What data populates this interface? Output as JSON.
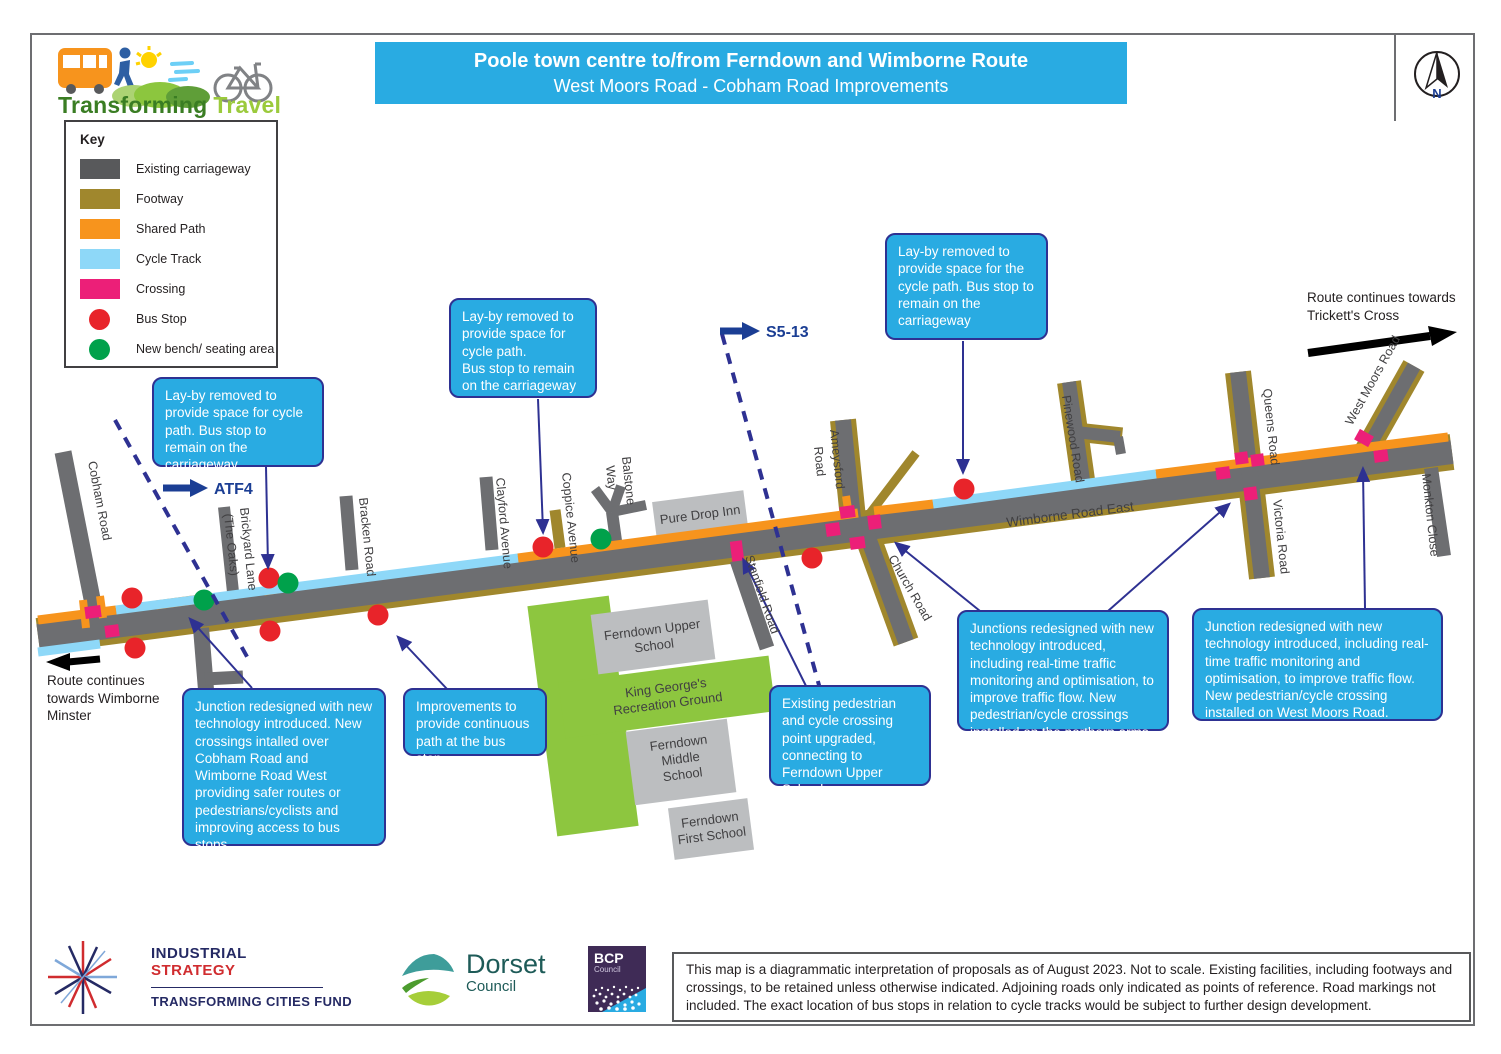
{
  "page": {
    "title_line1": "Poole town centre to/from Ferndown and Wimborne Route",
    "title_line2": "West Moors Road - Cobham Road Improvements"
  },
  "logo": {
    "text_bold": "Transforming",
    "text_light": "Travel"
  },
  "compass": {
    "label": "N"
  },
  "colors": {
    "title_bar": "#29ABE2",
    "callout_fill": "#29ABE2",
    "callout_border": "#2E3192",
    "carriageway": "#6D6E71",
    "footway": "#A0872D",
    "shared_path": "#F7941D",
    "cycle_track": "#8ED8F8",
    "crossing": "#EC1F78",
    "bus_stop": "#E8242A",
    "bench": "#00A14B",
    "recreation_ground": "#8DC63F",
    "building": "#BCBEC0",
    "dashed_route": "#2E3192"
  },
  "key": {
    "title": "Key",
    "items": [
      {
        "label": "Existing carriageway",
        "shape": "rect",
        "color": "#58595B",
        "icon": "carriageway-swatch"
      },
      {
        "label": "Footway",
        "shape": "rect",
        "color": "#A0872D",
        "icon": "footway-swatch"
      },
      {
        "label": "Shared Path",
        "shape": "rect",
        "color": "#F7941D",
        "icon": "shared-path-swatch"
      },
      {
        "label": "Cycle Track",
        "shape": "rect",
        "color": "#8ED8F8",
        "icon": "cycle-track-swatch"
      },
      {
        "label": "Crossing",
        "shape": "rect",
        "color": "#EC1F78",
        "icon": "crossing-swatch"
      },
      {
        "label": "Bus Stop",
        "shape": "circle",
        "color": "#E8242A",
        "icon": "bus-stop-swatch"
      },
      {
        "label": "New bench/ seating area",
        "shape": "circle",
        "color": "#00A14B",
        "icon": "bench-swatch"
      }
    ]
  },
  "callouts": [
    "Lay-by removed to provide space for cycle path. Bus stop to remain on the carriageway",
    "Lay-by removed to provide space for cycle path.\nBus stop to remain on the carriageway",
    "Lay-by removed to provide space for the cycle path. Bus stop to remain on the carriageway",
    "Junction redesigned with new technology introduced. New crossings intalled over Cobham Road and Wimborne Road West providing safer routes or pedestrians/cyclists and improving access to bus stops.",
    "Improvements to provide continuous path at the bus stop",
    "Existing pedestrian and cycle crossing point upgraded, connecting to Ferndown Upper School",
    "Junctions redesigned with new technology introduced, including real-time traffic monitoring and optimisation, to improve traffic flow. New pedestrian/cycle crossings installed on the northern arms.",
    "Junction redesigned with new technology introduced, including real-time traffic monitoring and optimisation, to improve traffic flow. New pedestrian/cycle crossing installed on West Moors Road."
  ],
  "map": {
    "route_markers": {
      "atf4": "ATF4",
      "s5_13": "S5-13"
    },
    "route_notes": {
      "west": "Route continues towards Wimborne Minster",
      "east": "Route continues towards Trickett's Cross"
    },
    "roads": {
      "cobham": "Cobham Road",
      "brickyard_1": "Brickyard Lane",
      "brickyard_2": "(The Oaks)",
      "bracken": "Bracken Road",
      "clayford": "Clayford Avenue",
      "coppice": "Coppice Avenue",
      "balstone_1": "Balstone",
      "balstone_2": "Way",
      "stanfield": "Stanfield Road",
      "ameysford_1": "Ameysford",
      "ameysford_2": "Road",
      "church": "Church Road",
      "wimborne_road_east": "Wimborne Road East",
      "pinewood": "Pinewood Road",
      "queens": "Queens Road",
      "victoria": "Victoria Road",
      "west_moors": "West Moors Road",
      "monkton": "Monkton Close"
    },
    "places": {
      "pure_drop_inn": "Pure Drop Inn",
      "upper_school_1": "Ferndown Upper",
      "upper_school_2": "School",
      "rec_ground_1": "King George's",
      "rec_ground_2": "Recreation Ground",
      "middle_school_1": "Ferndown",
      "middle_school_2": "Middle",
      "middle_school_3": "School",
      "first_school_1": "Ferndown",
      "first_school_2": "First School"
    }
  },
  "footer": {
    "industrial_strategy": {
      "line1": "INDUSTRIAL",
      "line2": "STRATEGY",
      "line3": "TRANSFORMING CITIES FUND"
    },
    "dorset": {
      "line1": "Dorset",
      "line2": "Council"
    },
    "bcp": {
      "line1": "BCP",
      "line2": "Council"
    },
    "disclaimer": "This map is a diagrammatic interpretation of proposals as of August 2023. Not to scale. Existing facilities, including footways and crossings, to be retained unless otherwise indicated. Adjoining roads only indicated as points of reference. Road markings not included. The exact location of bus stops in relation to cycle tracks would be subject to further design development."
  }
}
